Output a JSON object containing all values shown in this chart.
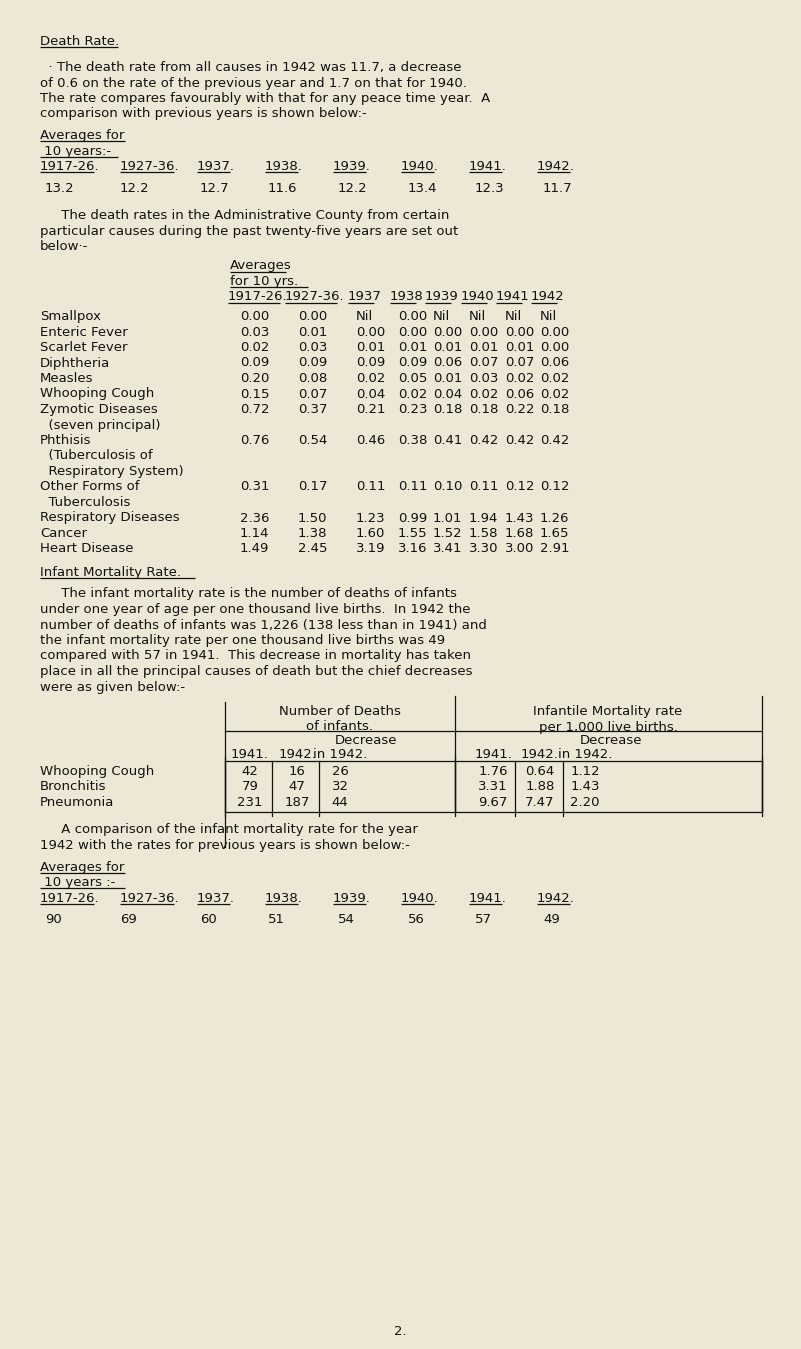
{
  "bg_color": "#ede8d5",
  "text_color": "#111111",
  "title": "Death Rate.",
  "para1_lines": [
    "  · The death rate from all causes in 1942 was 11.7, a decrease",
    "of 0.6 on the rate of the previous year and 1.7 on that for 1940.",
    "The rate compares favourably with that for any peace time year.  A",
    "comparison with previous years is shown below:-"
  ],
  "avg1_h1": "Averages for",
  "avg1_h2": " 10 years:-",
  "avg1_cols": [
    "1917-26.",
    "1927-36.",
    "1937.",
    "1938.",
    "1939.",
    "1940.",
    "1941.",
    "1942."
  ],
  "avg1_vals": [
    "13.2",
    "12.2",
    "12.7",
    "11.6",
    "12.2",
    "13.4",
    "12.3",
    "11.7"
  ],
  "para2_lines": [
    "     The death rates in the Administrative County from certain",
    "particular causes during the past twenty-five years are set out",
    "below·-"
  ],
  "tbl1_av_h1": "Averages",
  "tbl1_av_h2": "for 10 yrs.",
  "tbl1_col_heads": [
    "1917-26.",
    "1927-36.",
    "1937",
    "1938",
    "1939",
    "1940",
    "1941",
    "1942"
  ],
  "tbl1_rows": [
    [
      "Smallpox",
      "0.00",
      "0.00",
      "Nil",
      "0.00",
      "Nil",
      "Nil",
      "Nil",
      "Nil"
    ],
    [
      "Enteric Fever",
      "0.03",
      "0.01",
      "0.00",
      "0.00",
      "0.00",
      "0.00",
      "0.00",
      "0.00"
    ],
    [
      "Scarlet Fever",
      "0.02",
      "0.03",
      "0.01",
      "0.01",
      "0.01",
      "0.01",
      "0.01",
      "0.00"
    ],
    [
      "Diphtheria",
      "0.09",
      "0.09",
      "0.09",
      "0.09",
      "0.06",
      "0.07",
      "0.07",
      "0.06"
    ],
    [
      "Measles",
      "0.20",
      "0.08",
      "0.02",
      "0.05",
      "0.01",
      "0.03",
      "0.02",
      "0.02"
    ],
    [
      "Whooping Cough",
      "0.15",
      "0.07",
      "0.04",
      "0.02",
      "0.04",
      "0.02",
      "0.06",
      "0.02"
    ],
    [
      "Zymotic Diseases",
      "0.72",
      "0.37",
      "0.21",
      "0.23",
      "0.18",
      "0.18",
      "0.22",
      "0.18"
    ],
    [
      "  (seven principal)",
      "",
      "",
      "",
      "",
      "",
      "",
      "",
      ""
    ],
    [
      "Phthisis",
      "0.76",
      "0.54",
      "0.46",
      "0.38",
      "0.41",
      "0.42",
      "0.42",
      "0.42"
    ],
    [
      "  (Tuberculosis of",
      "",
      "",
      "",
      "",
      "",
      "",
      "",
      ""
    ],
    [
      "  Respiratory System)",
      "",
      "",
      "",
      "",
      "",
      "",
      "",
      ""
    ],
    [
      "Other Forms of",
      "0.31",
      "0.17",
      "0.11",
      "0.11",
      "0.10",
      "0.11",
      "0.12",
      "0.12"
    ],
    [
      "  Tuberculosis",
      "",
      "",
      "",
      "",
      "",
      "",
      "",
      ""
    ],
    [
      "Respiratory Diseases",
      "2.36",
      "1.50",
      "1.23",
      "0.99",
      "1.01",
      "1.94",
      "1.43",
      "1.26"
    ],
    [
      "Cancer",
      "1.14",
      "1.38",
      "1.60",
      "1.55",
      "1.52",
      "1.58",
      "1.68",
      "1.65"
    ],
    [
      "Heart Disease",
      "1.49",
      "2.45",
      "3.19",
      "3.16",
      "3.41",
      "3.30",
      "3.00",
      "2.91"
    ]
  ],
  "imr_title": "Infant Mortality Rate.",
  "para3_lines": [
    "     The infant mortality rate is the number of deaths of infants",
    "under one year of age per one thousand live births.  In 1942 the",
    "number of deaths of infants was 1,226 (138 less than in 1941) and",
    "the infant mortality rate per one thousand live births was 49",
    "compared with 57 in 1941.  This decrease in mortality has taken",
    "place in all the principal causes of death but the chief decreases",
    "were as given below:-"
  ],
  "tbl2_rows": [
    [
      "Whooping Cough",
      "42",
      "16",
      "26",
      "1.76",
      "0.64",
      "1.12"
    ],
    [
      "Bronchitis",
      "79",
      "47",
      "32",
      "3.31",
      "1.88",
      "1.43"
    ],
    [
      "Pneumonia",
      "231",
      "187",
      "44",
      "9.67",
      "7.47",
      "2.20"
    ]
  ],
  "para4_lines": [
    "     A comparison of the infant mortality rate for the year",
    "1942 with the rates for previous years is shown below:-"
  ],
  "avg2_h1": "Averages for",
  "avg2_h2": " 10 years :-",
  "avg2_cols": [
    "1917-26.",
    "1927-36.",
    "1937.",
    "1938.",
    "1939.",
    "1940.",
    "1941.",
    "1942."
  ],
  "avg2_vals": [
    "90",
    "69",
    "60",
    "51",
    "54",
    "56",
    "57",
    "49"
  ],
  "page_num": "2."
}
